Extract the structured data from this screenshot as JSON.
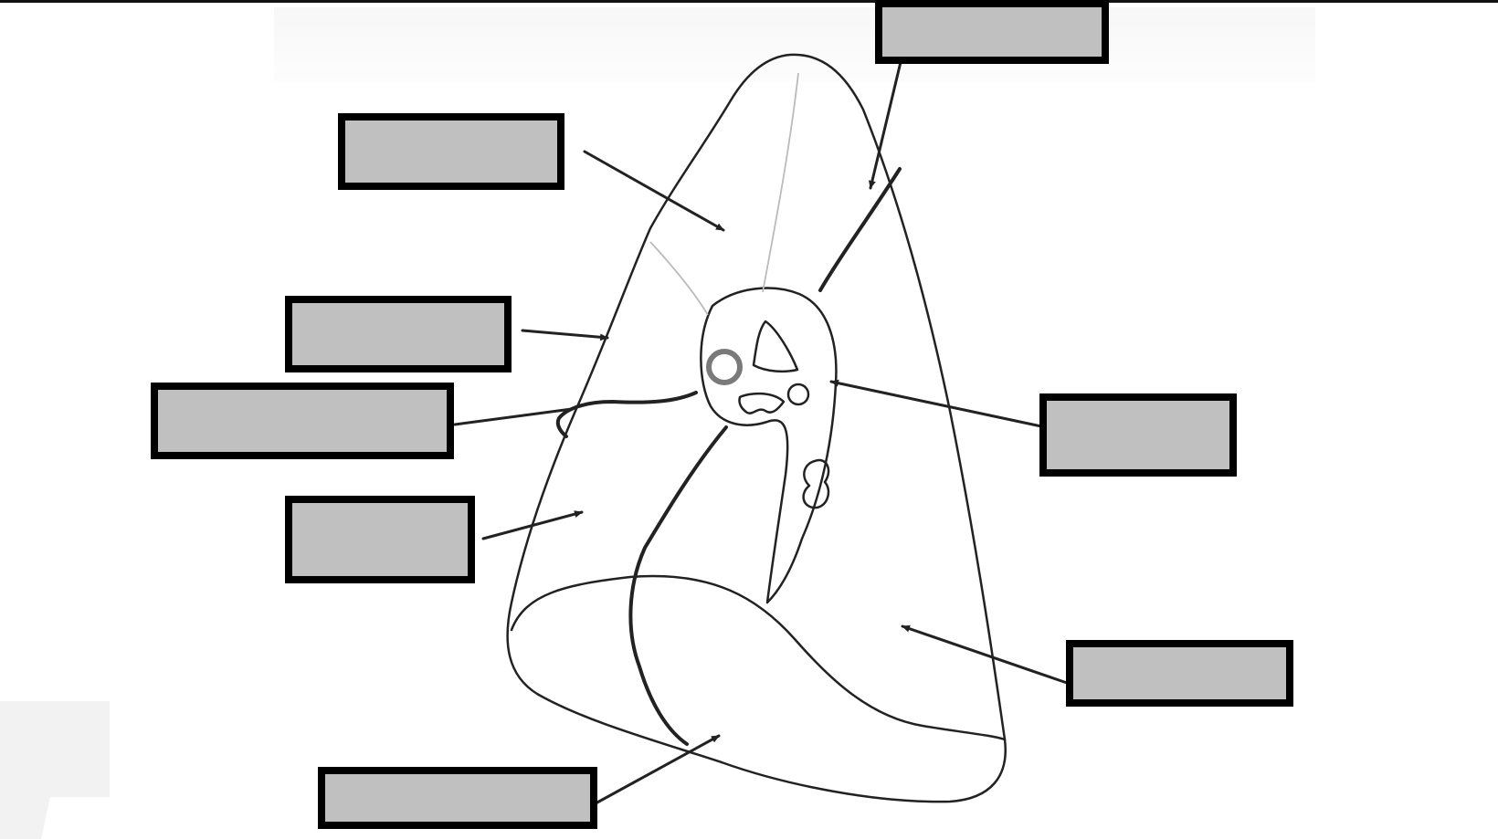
{
  "diagram": {
    "colors": {
      "box_fill": "#c0c0c0",
      "box_border": "#000000",
      "outline": "#222222",
      "faint_line": "#bbbbbb",
      "vessel_ring": "#7a7a7a"
    },
    "label_boxes": [
      {
        "id": "top-right",
        "text": ""
      },
      {
        "id": "upper-left",
        "text": ""
      },
      {
        "id": "mid-left",
        "text": ""
      },
      {
        "id": "wide-left",
        "text": ""
      },
      {
        "id": "lower-left",
        "text": ""
      },
      {
        "id": "right",
        "text": ""
      },
      {
        "id": "lower-right",
        "text": ""
      },
      {
        "id": "bottom",
        "text": ""
      }
    ]
  }
}
